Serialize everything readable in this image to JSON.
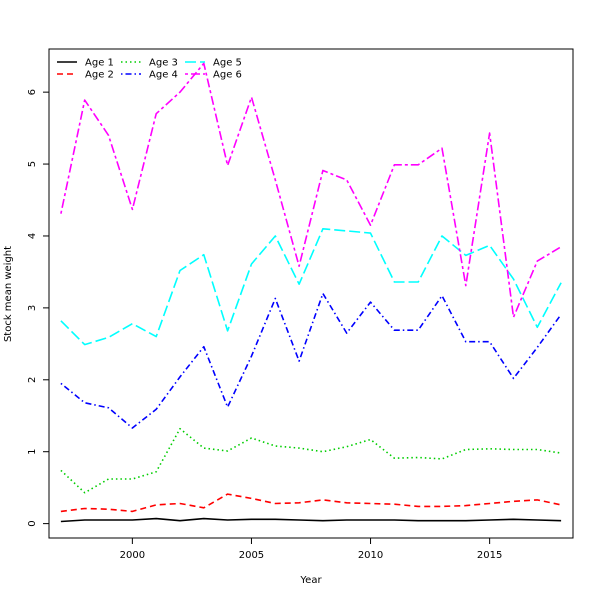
{
  "chart_data": {
    "type": "line",
    "title": "",
    "xlabel": "Year",
    "ylabel": "Stock mean weight",
    "xlim": [
      1996.5,
      2018.5
    ],
    "ylim": [
      -0.2,
      6.6
    ],
    "xticks": [
      2000,
      2005,
      2010,
      2015
    ],
    "yticks": [
      0,
      1,
      2,
      3,
      4,
      5,
      6
    ],
    "grid": false,
    "legend_position": "top-left",
    "x": [
      1997,
      1998,
      1999,
      2000,
      2001,
      2002,
      2003,
      2004,
      2005,
      2006,
      2007,
      2008,
      2009,
      2010,
      2011,
      2012,
      2013,
      2014,
      2015,
      2016,
      2017,
      2018
    ],
    "series": [
      {
        "name": "Age 1",
        "color": "#000000",
        "dash": "solid",
        "values": [
          0.03,
          0.05,
          0.05,
          0.05,
          0.07,
          0.04,
          0.07,
          0.05,
          0.06,
          0.06,
          0.05,
          0.04,
          0.05,
          0.05,
          0.05,
          0.04,
          0.04,
          0.04,
          0.05,
          0.06,
          0.05,
          0.04
        ]
      },
      {
        "name": "Age 2",
        "color": "#ff0000",
        "dash": "dashed",
        "values": [
          0.17,
          0.21,
          0.2,
          0.17,
          0.26,
          0.28,
          0.22,
          0.41,
          0.35,
          0.28,
          0.29,
          0.33,
          0.29,
          0.28,
          0.27,
          0.24,
          0.24,
          0.25,
          0.28,
          0.31,
          0.33,
          0.26
        ]
      },
      {
        "name": "Age 3",
        "color": "#00cd00",
        "dash": "dotted",
        "values": [
          0.74,
          0.43,
          0.62,
          0.62,
          0.72,
          1.32,
          1.05,
          1.01,
          1.19,
          1.08,
          1.05,
          1.0,
          1.07,
          1.17,
          0.91,
          0.92,
          0.9,
          1.03,
          1.04,
          1.03,
          1.03,
          0.98
        ]
      },
      {
        "name": "Age 4",
        "color": "#0000ff",
        "dash": "dotdash",
        "values": [
          1.95,
          1.68,
          1.61,
          1.33,
          1.59,
          2.04,
          2.46,
          1.62,
          2.33,
          3.13,
          2.26,
          3.2,
          2.65,
          3.08,
          2.69,
          2.69,
          3.17,
          2.53,
          2.53,
          2.02,
          2.45,
          2.91
        ]
      },
      {
        "name": "Age 5",
        "color": "#00ffff",
        "dash": "longdash",
        "values": [
          2.82,
          2.49,
          2.59,
          2.78,
          2.6,
          3.52,
          3.74,
          2.68,
          3.61,
          4.0,
          3.33,
          4.1,
          4.07,
          4.04,
          3.36,
          3.36,
          4.0,
          3.73,
          3.87,
          3.4,
          2.73,
          3.35
        ]
      },
      {
        "name": "Age 6",
        "color": "#ff00ff",
        "dash": "twodash",
        "values": [
          4.31,
          5.89,
          5.4,
          4.37,
          5.7,
          6.0,
          6.4,
          4.98,
          5.93,
          4.78,
          3.58,
          4.91,
          4.78,
          4.15,
          4.99,
          4.99,
          5.22,
          3.31,
          5.43,
          2.87,
          3.65,
          3.85
        ]
      }
    ]
  }
}
